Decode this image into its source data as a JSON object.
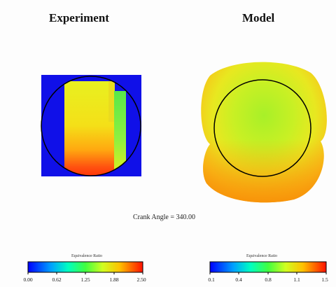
{
  "panels": {
    "experiment_title": "Experiment",
    "model_title": "Model"
  },
  "crank_angle_label": "Crank Angle = 340.00",
  "colorbars": [
    {
      "title": "Equivalence Ratio",
      "ticks": [
        "0.00",
        "0.62",
        "1.25",
        "1.88",
        "2.50"
      ]
    },
    {
      "title": "Equivalence Ratio",
      "ticks": [
        "0.1",
        "0.4",
        "0.8",
        "1.1",
        "1.5"
      ]
    }
  ],
  "colors": {
    "background_blue": "#1010e8",
    "outline": "#000000"
  }
}
